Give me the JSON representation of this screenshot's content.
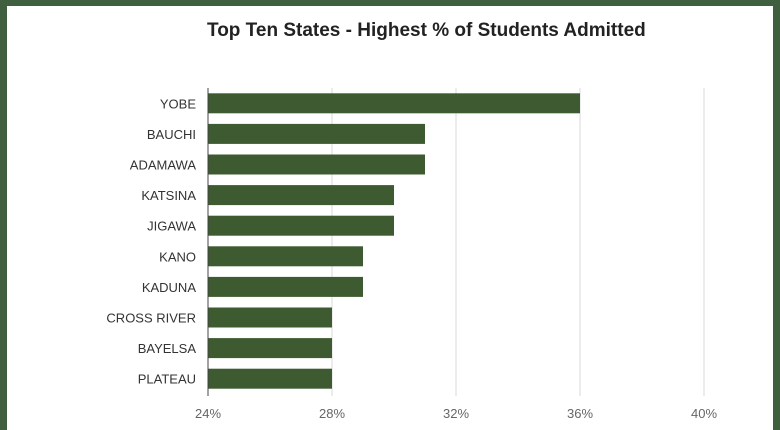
{
  "colors": {
    "bar": "#3d5a30",
    "grid": "#d9d9d9",
    "frame": "#3f5f3f"
  },
  "chart_data": {
    "type": "bar",
    "orientation": "horizontal",
    "title": "Top Ten States - Highest % of Students Admitted",
    "categories": [
      "YOBE",
      "BAUCHI",
      "ADAMAWA",
      "KATSINA",
      "JIGAWA",
      "KANO",
      "KADUNA",
      "CROSS RIVER",
      "BAYELSA",
      "PLATEAU"
    ],
    "values": [
      36,
      31,
      31,
      30,
      30,
      29,
      29,
      28,
      28,
      28
    ],
    "xlim": [
      24,
      40
    ],
    "xticks": [
      "24%",
      "28%",
      "32%",
      "36%",
      "40%"
    ],
    "xtick_values": [
      24,
      28,
      32,
      36,
      40
    ],
    "grid": true,
    "legend": "none"
  }
}
